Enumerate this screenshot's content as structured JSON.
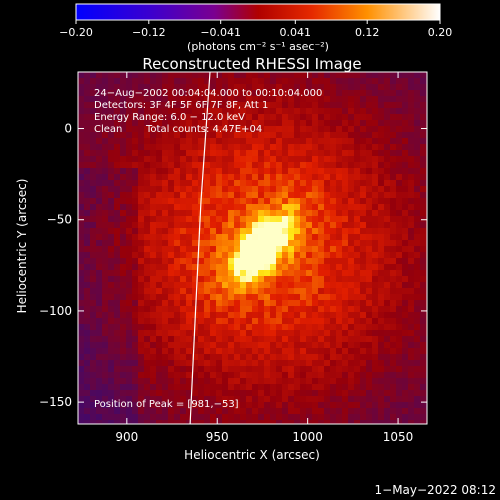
{
  "chart_data": {
    "type": "heatmap",
    "title": "Reconstructed RHESSI Image",
    "xlabel": "Heliocentric X (arcsec)",
    "ylabel": "Heliocentric Y (arcsec)",
    "xlim": [
      873,
      1066
    ],
    "ylim": [
      -162,
      31
    ],
    "x_ticks": [
      900,
      950,
      1000,
      1050
    ],
    "y_ticks": [
      0,
      -50,
      -100,
      -150
    ],
    "colorbar": {
      "unit_label": "(photons cm⁻² s⁻¹ asec⁻²)",
      "range": [
        -0.2,
        0.2
      ],
      "tick_values": [
        -0.2,
        -0.12,
        -0.041,
        0.041,
        0.12,
        0.2
      ],
      "tick_labels": [
        "−0.20",
        "−0.12",
        "−0.041",
        "0.041",
        "0.12",
        "0.20"
      ]
    },
    "annotations": [
      "24−Aug−2002 00:04:04.000 to 00:10:04.000",
      "Detectors: 3F 4F 5F 6F 7F 8F, Att 1",
      "Energy Range: 6.0 − 12.0 keV",
      "Clean",
      "Total counts: 4.47E+04"
    ],
    "peak_label": "Position of Peak = [981,−53]",
    "peak": [
      981,
      -53
    ],
    "source_axis": [
      [
        958,
        -77
      ],
      [
        990,
        -44
      ]
    ],
    "limb_curve": [
      [
        946,
        31
      ],
      [
        941,
        -40
      ],
      [
        938,
        -100
      ],
      [
        935,
        -162
      ]
    ],
    "timestamp": "1−May−2022 08:12"
  }
}
